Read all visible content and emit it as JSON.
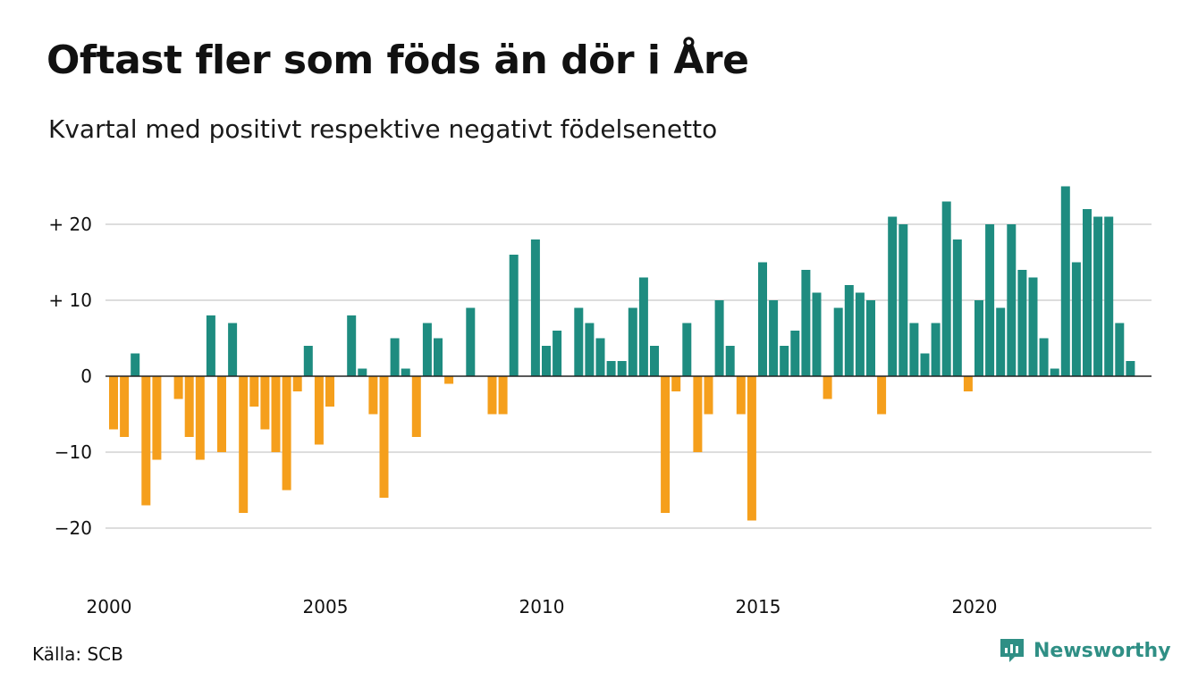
{
  "title": "Oftast fler som föds än dör i Åre",
  "subtitle": "Kvartal med positivt respektive negativt födelsenetto",
  "source": "Källa: SCB",
  "brand": {
    "name": "Newsworthy",
    "icon": "newsworthy-logo-icon"
  },
  "colors": {
    "positive": "#1e8c80",
    "negative": "#f59f1c",
    "grid": "#dddddd",
    "zero_line": "#222222",
    "brand": "#2f8f85"
  },
  "chart_data": {
    "type": "bar",
    "title": "Oftast fler som föds än dör i Åre",
    "subtitle": "Kvartal med positivt respektive negativt födelsenetto",
    "x_start": 2000,
    "periods_per_year": 4,
    "x_ticks": [
      "2000",
      "2005",
      "2010",
      "2015",
      "2020"
    ],
    "y_ticks": [
      {
        "value": 20,
        "label": "+ 20"
      },
      {
        "value": 10,
        "label": "+ 10"
      },
      {
        "value": 0,
        "label": "0"
      },
      {
        "value": -10,
        "label": "−10"
      },
      {
        "value": -20,
        "label": "−20"
      }
    ],
    "ylim": [
      -25,
      26
    ],
    "grid": true,
    "values": [
      -7,
      -8,
      3,
      -17,
      -11,
      0,
      -3,
      -8,
      -11,
      8,
      -10,
      7,
      -18,
      -4,
      -7,
      -10,
      -15,
      -2,
      4,
      -9,
      -4,
      0,
      8,
      1,
      -5,
      -16,
      5,
      1,
      -8,
      7,
      5,
      -1,
      0,
      9,
      0,
      -5,
      -5,
      16,
      0,
      18,
      4,
      6,
      0,
      9,
      7,
      5,
      2,
      2,
      9,
      13,
      4,
      -18,
      -2,
      7,
      -10,
      -5,
      10,
      4,
      -5,
      -19,
      15,
      10,
      4,
      6,
      14,
      11,
      -3,
      9,
      12,
      11,
      10,
      -5,
      21,
      20,
      7,
      3,
      7,
      23,
      18,
      -2,
      10,
      20,
      9,
      20,
      14,
      13,
      5,
      1,
      25,
      15,
      22,
      21,
      21,
      7,
      2
    ]
  }
}
